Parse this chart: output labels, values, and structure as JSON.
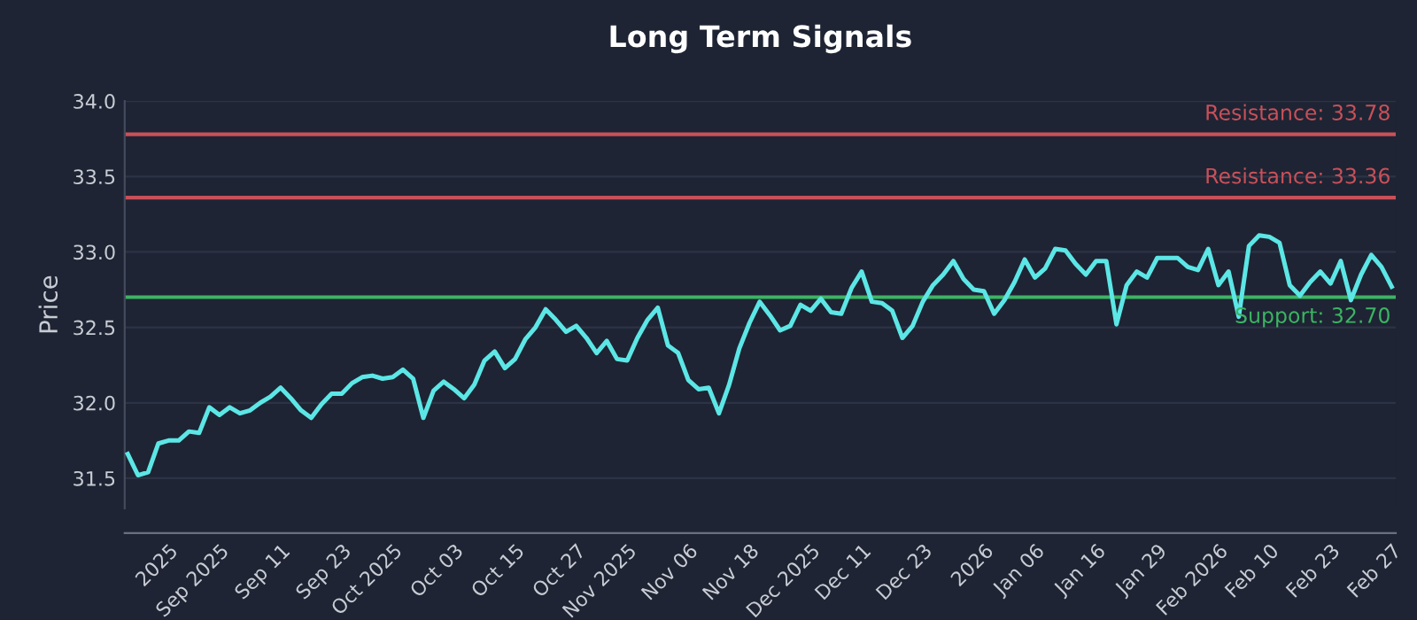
{
  "chart_data": {
    "type": "line",
    "title": "Long Term Signals",
    "ylabel": "Price",
    "categories": [
      null,
      null,
      null,
      null,
      "2025",
      null,
      null,
      null,
      null,
      "Sep 2025",
      null,
      null,
      null,
      null,
      null,
      "Sep 11",
      null,
      null,
      null,
      null,
      null,
      "Sep 23",
      null,
      null,
      null,
      null,
      "Oct 2025",
      null,
      null,
      null,
      null,
      null,
      "Oct 03",
      null,
      null,
      null,
      null,
      null,
      "Oct 15",
      null,
      null,
      null,
      null,
      null,
      "Oct 27",
      null,
      null,
      null,
      null,
      "Nov 2025",
      null,
      null,
      null,
      null,
      null,
      "Nov 06",
      null,
      null,
      null,
      null,
      null,
      "Nov 18",
      null,
      null,
      null,
      null,
      null,
      "Dec 2025",
      null,
      null,
      null,
      null,
      "Dec 11",
      null,
      null,
      null,
      null,
      null,
      "Dec 23",
      null,
      null,
      null,
      null,
      null,
      "2026",
      null,
      null,
      null,
      null,
      "Jan 06",
      null,
      null,
      null,
      null,
      null,
      "Jan 16",
      null,
      null,
      null,
      null,
      null,
      "Jan 29",
      null,
      null,
      null,
      null,
      null,
      "Feb 2026",
      null,
      null,
      null,
      null,
      "Feb 10",
      null,
      null,
      null,
      null,
      null,
      "Feb 23",
      null,
      null,
      null,
      null,
      null,
      "Feb 27"
    ],
    "series": [
      {
        "color": "#5ce6e6",
        "values": [
          31.66,
          31.52,
          31.54,
          31.73,
          31.75,
          31.75,
          31.81,
          31.8,
          31.97,
          31.92,
          31.97,
          31.93,
          31.95,
          32.0,
          32.04,
          32.1,
          32.03,
          31.95,
          31.9,
          31.99,
          32.06,
          32.06,
          32.13,
          32.17,
          32.18,
          32.16,
          32.17,
          32.22,
          32.16,
          31.9,
          32.08,
          32.14,
          32.09,
          32.03,
          32.12,
          32.28,
          32.34,
          32.23,
          32.29,
          32.42,
          32.5,
          32.62,
          32.55,
          32.47,
          32.51,
          32.43,
          32.33,
          32.41,
          32.29,
          32.28,
          32.43,
          32.55,
          32.63,
          32.38,
          32.33,
          32.15,
          32.09,
          32.1,
          31.93,
          32.12,
          32.36,
          32.53,
          32.67,
          32.58,
          32.48,
          32.51,
          32.65,
          32.61,
          32.69,
          32.6,
          32.59,
          32.76,
          32.87,
          32.67,
          32.66,
          32.61,
          32.43,
          32.51,
          32.67,
          32.78,
          32.85,
          32.94,
          32.82,
          32.75,
          32.74,
          32.59,
          32.68,
          32.8,
          32.95,
          32.83,
          32.89,
          33.02,
          33.01,
          32.92,
          32.85,
          32.94,
          32.94,
          32.52,
          32.78,
          32.87,
          32.83,
          32.96,
          32.96,
          32.96,
          32.9,
          32.88,
          33.02,
          32.78,
          32.87,
          32.57,
          33.04,
          33.11,
          33.1,
          33.06,
          32.78,
          32.71,
          32.8,
          32.87,
          32.79,
          32.94,
          32.68,
          32.85,
          32.98,
          32.9,
          32.77
        ]
      }
    ],
    "ylim": [
      31.3,
      34.0
    ],
    "yticks": [
      31.5,
      {
        "value": 32,
        "label": "32.0"
      },
      32.5,
      {
        "value": 33,
        "label": "33.0"
      },
      33.5,
      {
        "value": 34,
        "label": "34.0"
      }
    ],
    "grid": "y",
    "ref_lines": [
      {
        "axis": "y",
        "value": 33.78,
        "label": "Resistance: 33.78",
        "color": "#c8505a"
      },
      {
        "axis": "y",
        "value": 33.36,
        "label": "Resistance: 33.36",
        "color": "#c8505a"
      },
      {
        "axis": "y",
        "value": 32.7,
        "label": "Support: 32.70",
        "color": "#3cb464"
      }
    ]
  }
}
